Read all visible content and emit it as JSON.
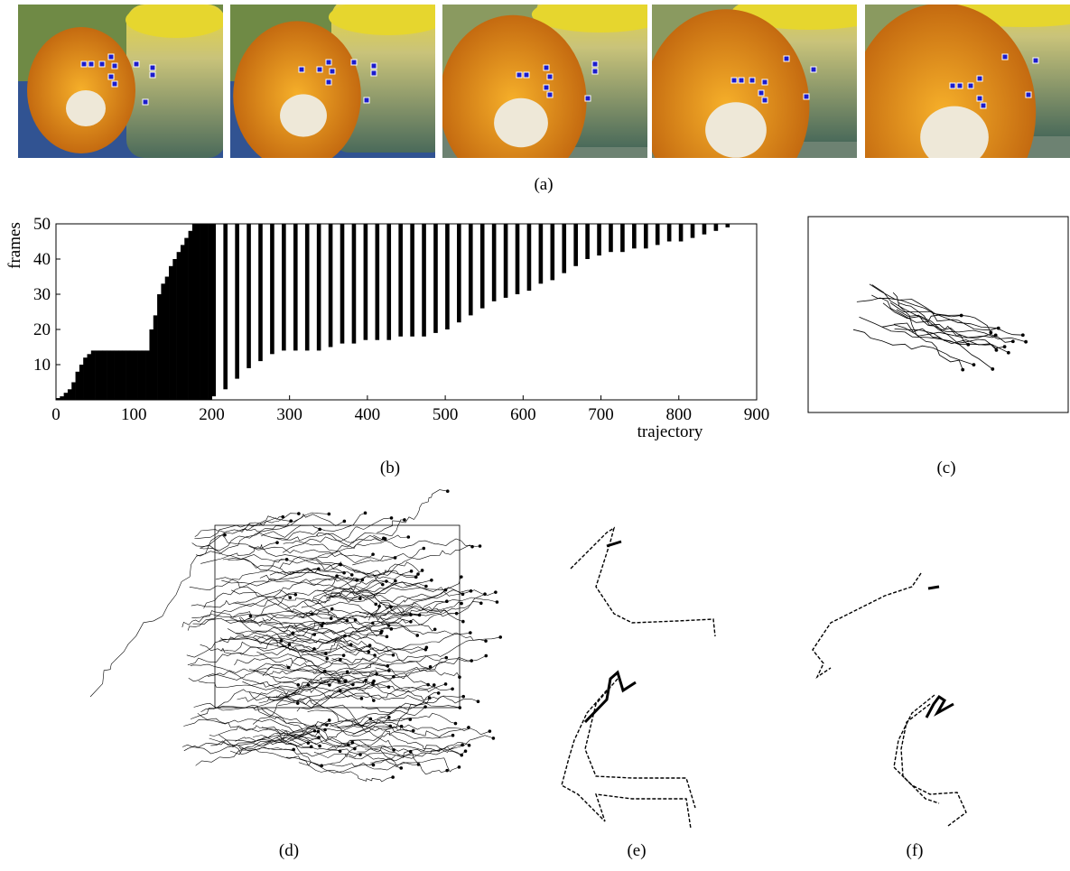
{
  "captions": {
    "a": "(a)",
    "b": "(b)",
    "c": "(c)",
    "d": "(d)",
    "e": "(e)",
    "f": "(f)"
  },
  "chart_data": {
    "type": "span",
    "x_label": "trajectory",
    "y_label": "frames",
    "color": "#000000",
    "x": [
      0,
      5,
      10,
      15,
      20,
      25,
      30,
      35,
      40,
      45,
      50,
      55,
      60,
      65,
      70,
      75,
      80,
      85,
      90,
      95,
      100,
      105,
      110,
      115,
      120,
      125,
      130,
      135,
      140,
      145,
      150,
      155,
      160,
      165,
      170,
      175,
      180,
      185,
      190,
      195,
      200,
      215,
      230,
      245,
      260,
      275,
      290,
      305,
      320,
      335,
      350,
      365,
      380,
      395,
      410,
      425,
      440,
      455,
      470,
      485,
      500,
      515,
      530,
      545,
      560,
      575,
      590,
      605,
      620,
      635,
      650,
      665,
      680,
      695,
      710,
      725,
      740,
      755,
      770,
      785,
      800,
      815,
      830,
      845,
      860
    ],
    "start": [
      0,
      0,
      0,
      0,
      0,
      0,
      0,
      0,
      0,
      0,
      0,
      0,
      0,
      0,
      0,
      0,
      0,
      0,
      0,
      0,
      0,
      0,
      0,
      0,
      0,
      0,
      0,
      0,
      0,
      0,
      0,
      0,
      0,
      0,
      0,
      0,
      0,
      0,
      0,
      0,
      1,
      3,
      6,
      9,
      11,
      13,
      14,
      14,
      14,
      14,
      15,
      16,
      16,
      17,
      17,
      17,
      18,
      18,
      18,
      19,
      20,
      22,
      24,
      26,
      28,
      29,
      30,
      31,
      33,
      34,
      36,
      38,
      40,
      41,
      42,
      42,
      43,
      43,
      44,
      45,
      45,
      46,
      47,
      48,
      49
    ],
    "end": [
      0.5,
      1,
      2,
      3,
      5,
      8,
      10,
      12,
      13,
      14,
      14,
      14,
      14,
      14,
      14,
      14,
      14,
      14,
      14,
      14,
      14,
      14,
      14,
      14,
      20,
      24,
      30,
      33,
      35,
      38,
      40,
      42,
      44,
      46,
      48,
      50,
      50,
      50,
      50,
      50,
      50,
      50,
      50,
      50,
      50,
      50,
      50,
      50,
      50,
      50,
      50,
      50,
      50,
      50,
      50,
      50,
      50,
      50,
      50,
      50,
      50,
      50,
      50,
      50,
      50,
      50,
      50,
      50,
      50,
      50,
      50,
      50,
      50,
      50,
      50,
      50,
      50,
      50,
      50,
      50,
      50,
      50,
      50,
      50,
      50
    ],
    "xlim": [
      0,
      900
    ],
    "ylim": [
      0,
      50
    ],
    "xticks": [
      0,
      100,
      200,
      300,
      400,
      500,
      600,
      700,
      800,
      900
    ],
    "yticks": [
      10,
      20,
      30,
      40,
      50
    ]
  }
}
